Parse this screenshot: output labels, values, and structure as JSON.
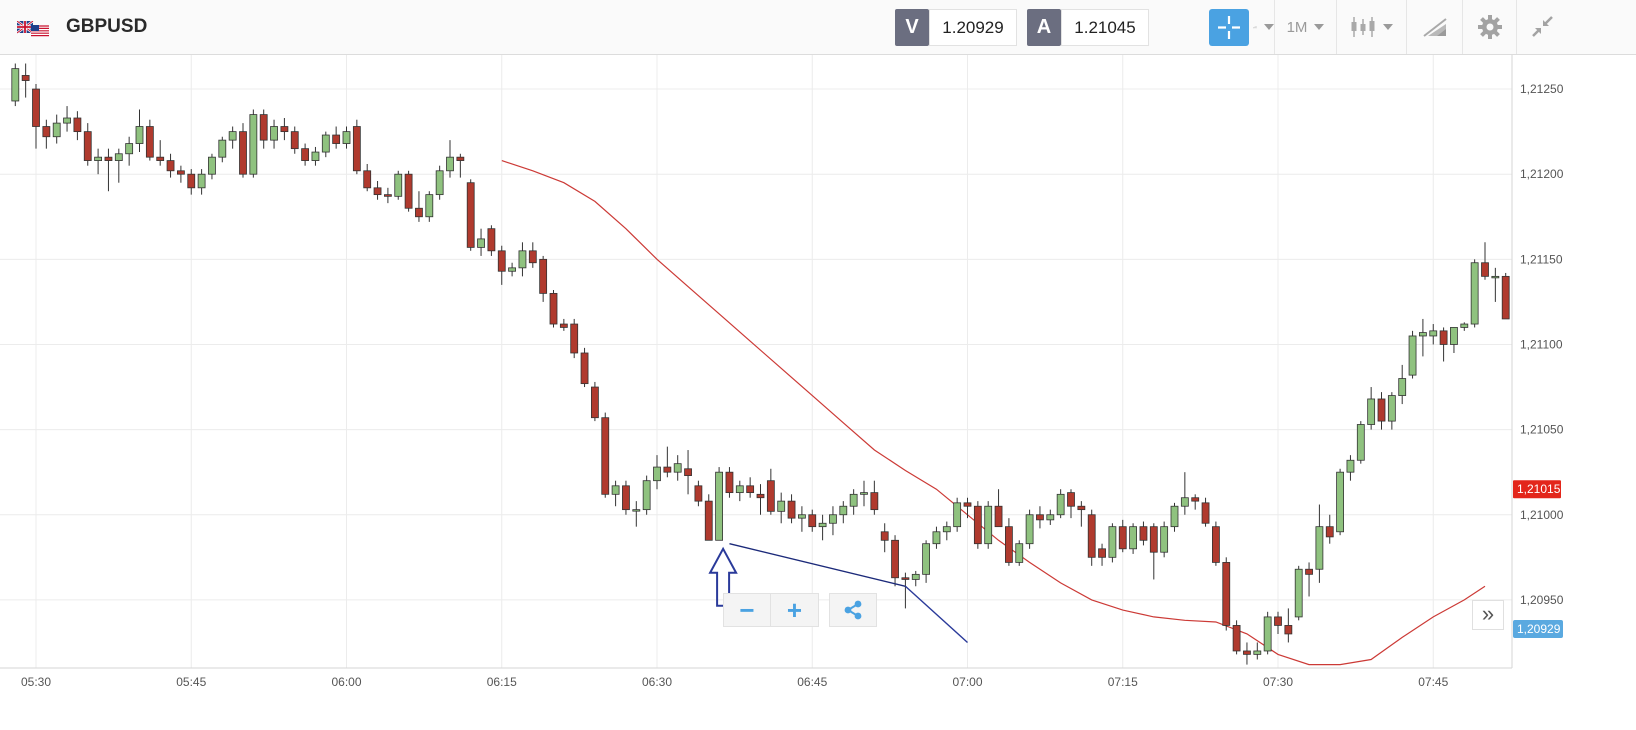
{
  "toolbar": {
    "symbol": "GBPUSD",
    "flag_icon": "gb-us-flag-icon",
    "sell_letter": "V",
    "sell_price": "1.20929",
    "buy_letter": "A",
    "buy_price": "1.21045",
    "timeframe": "1M",
    "icons": [
      "crosshair-icon",
      "indicators-icon",
      "candlestick-icon",
      "drawing-tools-icon",
      "gear-icon",
      "collapse-icon"
    ],
    "accent_color": "#4aa2e2"
  },
  "price_axis": {
    "labels": [
      "1,21250",
      "1,21200",
      "1,21150",
      "1,21100",
      "1,21050",
      "1,21000",
      "1,20950"
    ],
    "last_price_tag": "1,21015",
    "last_price_tag_color": "#e3261b",
    "bid_tag": "1,20929",
    "bid_tag_color": "#5aa9e0"
  },
  "time_axis": {
    "labels": [
      "05:30",
      "05:45",
      "06:00",
      "06:15",
      "06:30",
      "06:45",
      "07:00",
      "07:15",
      "07:30",
      "07:45"
    ]
  },
  "controls": {
    "zoom_out": "−",
    "zoom_in": "+",
    "share_icon": "share-icon",
    "scroll_forward": "»"
  },
  "chart_data": {
    "type": "candlestick",
    "interval": "1M",
    "ylim": [
      1.2091,
      1.2127
    ],
    "up_color": "#8fc27f",
    "down_color": "#b03a2e",
    "x_start": "05:28",
    "candles": [
      [
        1.21243,
        1.21265,
        1.2124,
        1.21262
      ],
      [
        1.21258,
        1.21265,
        1.21245,
        1.21255
      ],
      [
        1.2125,
        1.21253,
        1.21215,
        1.21228
      ],
      [
        1.21228,
        1.21232,
        1.21215,
        1.21222
      ],
      [
        1.21222,
        1.21235,
        1.21218,
        1.2123
      ],
      [
        1.2123,
        1.2124,
        1.21225,
        1.21233
      ],
      [
        1.21233,
        1.21237,
        1.2122,
        1.21225
      ],
      [
        1.21225,
        1.2123,
        1.21205,
        1.21208
      ],
      [
        1.21208,
        1.21215,
        1.212,
        1.2121
      ],
      [
        1.2121,
        1.21215,
        1.2119,
        1.21208
      ],
      [
        1.21208,
        1.21215,
        1.21195,
        1.21212
      ],
      [
        1.21212,
        1.21222,
        1.21205,
        1.21218
      ],
      [
        1.21218,
        1.21238,
        1.21213,
        1.21228
      ],
      [
        1.21228,
        1.21232,
        1.21208,
        1.2121
      ],
      [
        1.2121,
        1.2122,
        1.21205,
        1.21208
      ],
      [
        1.21208,
        1.21212,
        1.21198,
        1.21202
      ],
      [
        1.21202,
        1.21205,
        1.21195,
        1.212
      ],
      [
        1.212,
        1.21203,
        1.21188,
        1.21192
      ],
      [
        1.21192,
        1.21203,
        1.21188,
        1.212
      ],
      [
        1.212,
        1.21212,
        1.21197,
        1.2121
      ],
      [
        1.2121,
        1.21222,
        1.21207,
        1.2122
      ],
      [
        1.2122,
        1.21228,
        1.21215,
        1.21225
      ],
      [
        1.21225,
        1.2123,
        1.21198,
        1.212
      ],
      [
        1.212,
        1.21238,
        1.21198,
        1.21235
      ],
      [
        1.21235,
        1.21238,
        1.21215,
        1.2122
      ],
      [
        1.2122,
        1.21232,
        1.21215,
        1.21228
      ],
      [
        1.21228,
        1.21233,
        1.2122,
        1.21225
      ],
      [
        1.21225,
        1.21228,
        1.21212,
        1.21215
      ],
      [
        1.21215,
        1.21218,
        1.21205,
        1.21208
      ],
      [
        1.21208,
        1.21216,
        1.21205,
        1.21213
      ],
      [
        1.21213,
        1.21225,
        1.2121,
        1.21223
      ],
      [
        1.21223,
        1.21228,
        1.21215,
        1.21218
      ],
      [
        1.21218,
        1.21228,
        1.21215,
        1.21225
      ],
      [
        1.21228,
        1.21232,
        1.212,
        1.21202
      ],
      [
        1.21202,
        1.21206,
        1.2119,
        1.21192
      ],
      [
        1.21192,
        1.21196,
        1.21185,
        1.21188
      ],
      [
        1.21188,
        1.21192,
        1.21183,
        1.21187
      ],
      [
        1.21187,
        1.21202,
        1.21185,
        1.212
      ],
      [
        1.212,
        1.21202,
        1.21178,
        1.2118
      ],
      [
        1.2118,
        1.2119,
        1.21172,
        1.21175
      ],
      [
        1.21175,
        1.2119,
        1.21172,
        1.21188
      ],
      [
        1.21188,
        1.21205,
        1.21185,
        1.21202
      ],
      [
        1.21202,
        1.2122,
        1.21198,
        1.2121
      ],
      [
        1.2121,
        1.21212,
        1.21198,
        1.21208
      ],
      [
        1.21195,
        1.21197,
        1.21155,
        1.21157
      ],
      [
        1.21157,
        1.21168,
        1.21152,
        1.21162
      ],
      [
        1.21168,
        1.2117,
        1.21152,
        1.21155
      ],
      [
        1.21155,
        1.21158,
        1.21135,
        1.21143
      ],
      [
        1.21143,
        1.21148,
        1.2114,
        1.21145
      ],
      [
        1.21145,
        1.2116,
        1.2114,
        1.21155
      ],
      [
        1.21155,
        1.2116,
        1.21145,
        1.21148
      ],
      [
        1.2115,
        1.21152,
        1.21125,
        1.2113
      ],
      [
        1.2113,
        1.21132,
        1.2111,
        1.21112
      ],
      [
        1.21112,
        1.21115,
        1.21108,
        1.2111
      ],
      [
        1.21112,
        1.21115,
        1.21092,
        1.21095
      ],
      [
        1.21095,
        1.21098,
        1.21075,
        1.21077
      ],
      [
        1.21075,
        1.21078,
        1.21055,
        1.21057
      ],
      [
        1.21057,
        1.2106,
        1.2101,
        1.21012
      ],
      [
        1.21012,
        1.2102,
        1.21005,
        1.21017
      ],
      [
        1.21017,
        1.2102,
        1.21,
        1.21003
      ],
      [
        1.21003,
        1.21008,
        1.20993,
        1.21003
      ],
      [
        1.21003,
        1.21023,
        1.21,
        1.2102
      ],
      [
        1.2102,
        1.21035,
        1.21015,
        1.21028
      ],
      [
        1.21028,
        1.2104,
        1.21022,
        1.21025
      ],
      [
        1.21025,
        1.21035,
        1.2102,
        1.2103
      ],
      [
        1.21027,
        1.21038,
        1.21012,
        1.21023
      ],
      [
        1.21017,
        1.2102,
        1.21005,
        1.21008
      ],
      [
        1.21008,
        1.21012,
        1.20985,
        1.20985
      ],
      [
        1.20985,
        1.21028,
        1.20985,
        1.21025
      ],
      [
        1.21025,
        1.21028,
        1.2101,
        1.21013
      ],
      [
        1.21013,
        1.2102,
        1.21008,
        1.21017
      ],
      [
        1.21017,
        1.21022,
        1.2101,
        1.21013
      ],
      [
        1.21012,
        1.21018,
        1.21,
        1.2101
      ],
      [
        1.2102,
        1.21027,
        1.21,
        1.21002
      ],
      [
        1.21002,
        1.21013,
        1.20995,
        1.21008
      ],
      [
        1.21008,
        1.21012,
        1.20995,
        1.20998
      ],
      [
        1.20998,
        1.21005,
        1.2099,
        1.21
      ],
      [
        1.21,
        1.21003,
        1.2099,
        1.20993
      ],
      [
        1.20993,
        1.21,
        1.20985,
        1.20995
      ],
      [
        1.20995,
        1.21005,
        1.20988,
        1.21
      ],
      [
        1.21,
        1.21008,
        1.20995,
        1.21005
      ],
      [
        1.21005,
        1.21015,
        1.21,
        1.21012
      ],
      [
        1.21012,
        1.2102,
        1.21005,
        1.21013
      ],
      [
        1.21013,
        1.2102,
        1.21,
        1.21003
      ],
      [
        1.2099,
        1.20995,
        1.20978,
        1.20985
      ],
      [
        1.20985,
        1.20988,
        1.20958,
        1.20963
      ],
      [
        1.20963,
        1.20966,
        1.20945,
        1.20962
      ],
      [
        1.20962,
        1.20967,
        1.20958,
        1.20965
      ],
      [
        1.20965,
        1.20985,
        1.2096,
        1.20983
      ],
      [
        1.20983,
        1.20993,
        1.2098,
        1.2099
      ],
      [
        1.2099,
        1.20996,
        1.20985,
        1.20993
      ],
      [
        1.20993,
        1.2101,
        1.2099,
        1.21007
      ],
      [
        1.21007,
        1.2101,
        1.20998,
        1.21005
      ],
      [
        1.21005,
        1.21008,
        1.2098,
        1.20983
      ],
      [
        1.20983,
        1.21008,
        1.2098,
        1.21005
      ],
      [
        1.21005,
        1.21015,
        1.20995,
        1.20993
      ],
      [
        1.20993,
        1.20998,
        1.2097,
        1.20972
      ],
      [
        1.20972,
        1.20985,
        1.2097,
        1.20983
      ],
      [
        1.20983,
        1.21003,
        1.2098,
        1.21
      ],
      [
        1.21,
        1.21005,
        1.20992,
        1.20997
      ],
      [
        1.20997,
        1.21003,
        1.20994,
        1.21
      ],
      [
        1.21,
        1.21015,
        1.20998,
        1.21012
      ],
      [
        1.21013,
        1.21015,
        1.20998,
        1.21005
      ],
      [
        1.21005,
        1.21008,
        1.20993,
        1.21003
      ],
      [
        1.21,
        1.21003,
        1.2097,
        1.20975
      ],
      [
        1.2098,
        1.20983,
        1.2097,
        1.20975
      ],
      [
        1.20975,
        1.20995,
        1.20972,
        1.20993
      ],
      [
        1.20993,
        1.20997,
        1.20978,
        1.2098
      ],
      [
        1.2098,
        1.20995,
        1.20977,
        1.20993
      ],
      [
        1.20993,
        1.20996,
        1.20982,
        1.20985
      ],
      [
        1.20993,
        1.20995,
        1.20962,
        1.20978
      ],
      [
        1.20978,
        1.20996,
        1.20975,
        1.20993
      ],
      [
        1.20993,
        1.21007,
        1.2099,
        1.21005
      ],
      [
        1.21005,
        1.21025,
        1.21,
        1.2101
      ],
      [
        1.2101,
        1.21012,
        1.21003,
        1.21008
      ],
      [
        1.21007,
        1.2101,
        1.20993,
        1.20995
      ],
      [
        1.20993,
        1.20996,
        1.2097,
        1.20972
      ],
      [
        1.20972,
        1.20975,
        1.20932,
        1.20935
      ],
      [
        1.20935,
        1.20938,
        1.20918,
        1.2092
      ],
      [
        1.2092,
        1.20925,
        1.20912,
        1.20918
      ],
      [
        1.20918,
        1.20925,
        1.20915,
        1.2092
      ],
      [
        1.2092,
        1.20943,
        1.20918,
        1.2094
      ],
      [
        1.2094,
        1.20943,
        1.2093,
        1.20935
      ],
      [
        1.20935,
        1.20945,
        1.20925,
        1.2093
      ],
      [
        1.2094,
        1.2097,
        1.20938,
        1.20968
      ],
      [
        1.20968,
        1.20972,
        1.20952,
        1.20965
      ],
      [
        1.20968,
        1.21006,
        1.2096,
        1.20993
      ],
      [
        1.20993,
        1.21,
        1.20983,
        1.20987
      ],
      [
        1.2099,
        1.21027,
        1.20988,
        1.21025
      ],
      [
        1.21025,
        1.21035,
        1.2102,
        1.21032
      ],
      [
        1.21032,
        1.21055,
        1.2103,
        1.21053
      ],
      [
        1.21053,
        1.21075,
        1.2105,
        1.21068
      ],
      [
        1.21068,
        1.21072,
        1.2105,
        1.21055
      ],
      [
        1.21055,
        1.21072,
        1.2105,
        1.2107
      ],
      [
        1.2107,
        1.21088,
        1.21065,
        1.2108
      ],
      [
        1.21082,
        1.21108,
        1.2108,
        1.21105
      ],
      [
        1.21105,
        1.21115,
        1.21093,
        1.21107
      ],
      [
        1.21105,
        1.21112,
        1.211,
        1.21108
      ],
      [
        1.21108,
        1.2111,
        1.2109,
        1.211
      ],
      [
        1.211,
        1.2111,
        1.21095,
        1.2111
      ],
      [
        1.2111,
        1.21113,
        1.21108,
        1.21112
      ],
      [
        1.21112,
        1.2115,
        1.2111,
        1.21148
      ],
      [
        1.21148,
        1.2116,
        1.21138,
        1.2114
      ],
      [
        1.2114,
        1.21145,
        1.21125,
        1.2114
      ],
      [
        1.2114,
        1.21142,
        1.21115,
        1.21115
      ]
    ],
    "moving_average": {
      "color": "#cc3a36",
      "points": [
        [
          "06:15",
          1.21208
        ],
        [
          "06:18",
          1.21202
        ],
        [
          "06:21",
          1.21195
        ],
        [
          "06:24",
          1.21184
        ],
        [
          "06:27",
          1.21168
        ],
        [
          "06:30",
          1.2115
        ],
        [
          "06:33",
          1.21134
        ],
        [
          "06:36",
          1.21118
        ],
        [
          "06:39",
          1.21102
        ],
        [
          "06:42",
          1.21086
        ],
        [
          "06:45",
          1.2107
        ],
        [
          "06:48",
          1.21054
        ],
        [
          "06:51",
          1.21038
        ],
        [
          "06:54",
          1.21026
        ],
        [
          "06:57",
          1.21015
        ],
        [
          "07:00",
          1.21
        ],
        [
          "07:03",
          1.20985
        ],
        [
          "07:06",
          1.20972
        ],
        [
          "07:09",
          1.2096
        ],
        [
          "07:12",
          1.2095
        ],
        [
          "07:15",
          1.20944
        ],
        [
          "07:18",
          1.2094
        ],
        [
          "07:21",
          1.20938
        ],
        [
          "07:24",
          1.20937
        ],
        [
          "07:27",
          1.2093
        ],
        [
          "07:30",
          1.20918
        ],
        [
          "07:33",
          1.20912
        ],
        [
          "07:36",
          1.20912
        ],
        [
          "07:39",
          1.20915
        ],
        [
          "07:42",
          1.20928
        ],
        [
          "07:45",
          1.2094
        ],
        [
          "07:48",
          1.2095
        ],
        [
          "07:50",
          1.20958
        ]
      ]
    },
    "annotations": [
      {
        "type": "trendline",
        "from": [
          "06:37",
          1.20983
        ],
        "to": [
          "06:54",
          1.20958
        ],
        "color": "#1c2a7a"
      },
      {
        "type": "trendline",
        "from": [
          "06:54",
          1.20958
        ],
        "to": [
          "07:00",
          1.20925
        ],
        "color": "#2a3a9a"
      },
      {
        "type": "arrow-up",
        "at": [
          "06:36",
          1.2098
        ],
        "color": "#2a3a9a"
      }
    ]
  }
}
